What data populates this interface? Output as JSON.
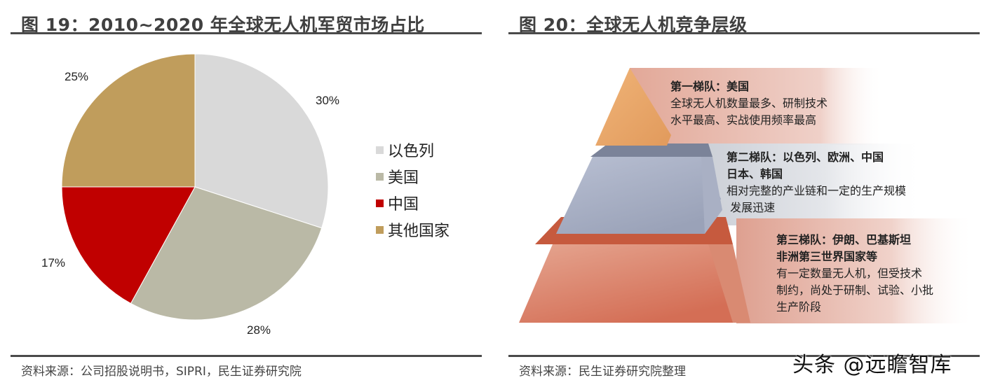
{
  "left_figure": {
    "title": "图 19：2010~2020 年全球无人机军贸市场占比",
    "source": "资料来源：公司招股说明书，SIPRI，民生证券研究院"
  },
  "right_figure": {
    "title": "图 20：全球无人机竞争层级",
    "source": "资料来源：民生证券研究院整理",
    "tiers": [
      {
        "heading": "第一梯队：美国",
        "lines": [
          "全球无人机数量最多、研制技术",
          "水平最高、实战使用频率最高"
        ],
        "color": "#e8a868"
      },
      {
        "heading_lines": [
          "第二梯队：以色列、欧洲、中国",
          "日本、韩国"
        ],
        "lines": [
          "相对完整的产业链和一定的生产规模",
          " 发展迅速"
        ],
        "color": "#a6adc2"
      },
      {
        "heading_lines": [
          "第三梯队：伊朗、巴基斯坦",
          "非洲第三世界国家等"
        ],
        "lines": [
          "有一定数量无人机，但受技术",
          "制约，尚处于研制、试验、小批",
          "生产阶段"
        ],
        "color": "#d9806a"
      }
    ]
  },
  "watermark": "头条 @远瞻智库",
  "chart_data": [
    {
      "type": "pie",
      "title": "2010~2020 年全球无人机军贸市场占比",
      "categories": [
        "以色列",
        "美国",
        "中国",
        "其他国家"
      ],
      "values": [
        30,
        28,
        17,
        25
      ],
      "labels": [
        "30%",
        "28%",
        "17%",
        "25%"
      ],
      "colors": [
        "#d9d9d9",
        "#bab9a6",
        "#c00000",
        "#c09d5c"
      ],
      "start_angle": "12 o'clock, clockwise",
      "legend_position": "right"
    },
    {
      "type": "table",
      "title": "全球无人机竞争层级",
      "rows": [
        {
          "tier": "第一梯队",
          "members": "美国",
          "description": "全球无人机数量最多、研制技术水平最高、实战使用频率最高"
        },
        {
          "tier": "第二梯队",
          "members": "以色列、欧洲、中国、日本、韩国",
          "description": "相对完整的产业链和一定的生产规模，发展迅速"
        },
        {
          "tier": "第三梯队",
          "members": "伊朗、巴基斯坦、非洲第三世界国家等",
          "description": "有一定数量无人机，但受技术制约，尚处于研制、试验、小批生产阶段"
        }
      ]
    }
  ]
}
